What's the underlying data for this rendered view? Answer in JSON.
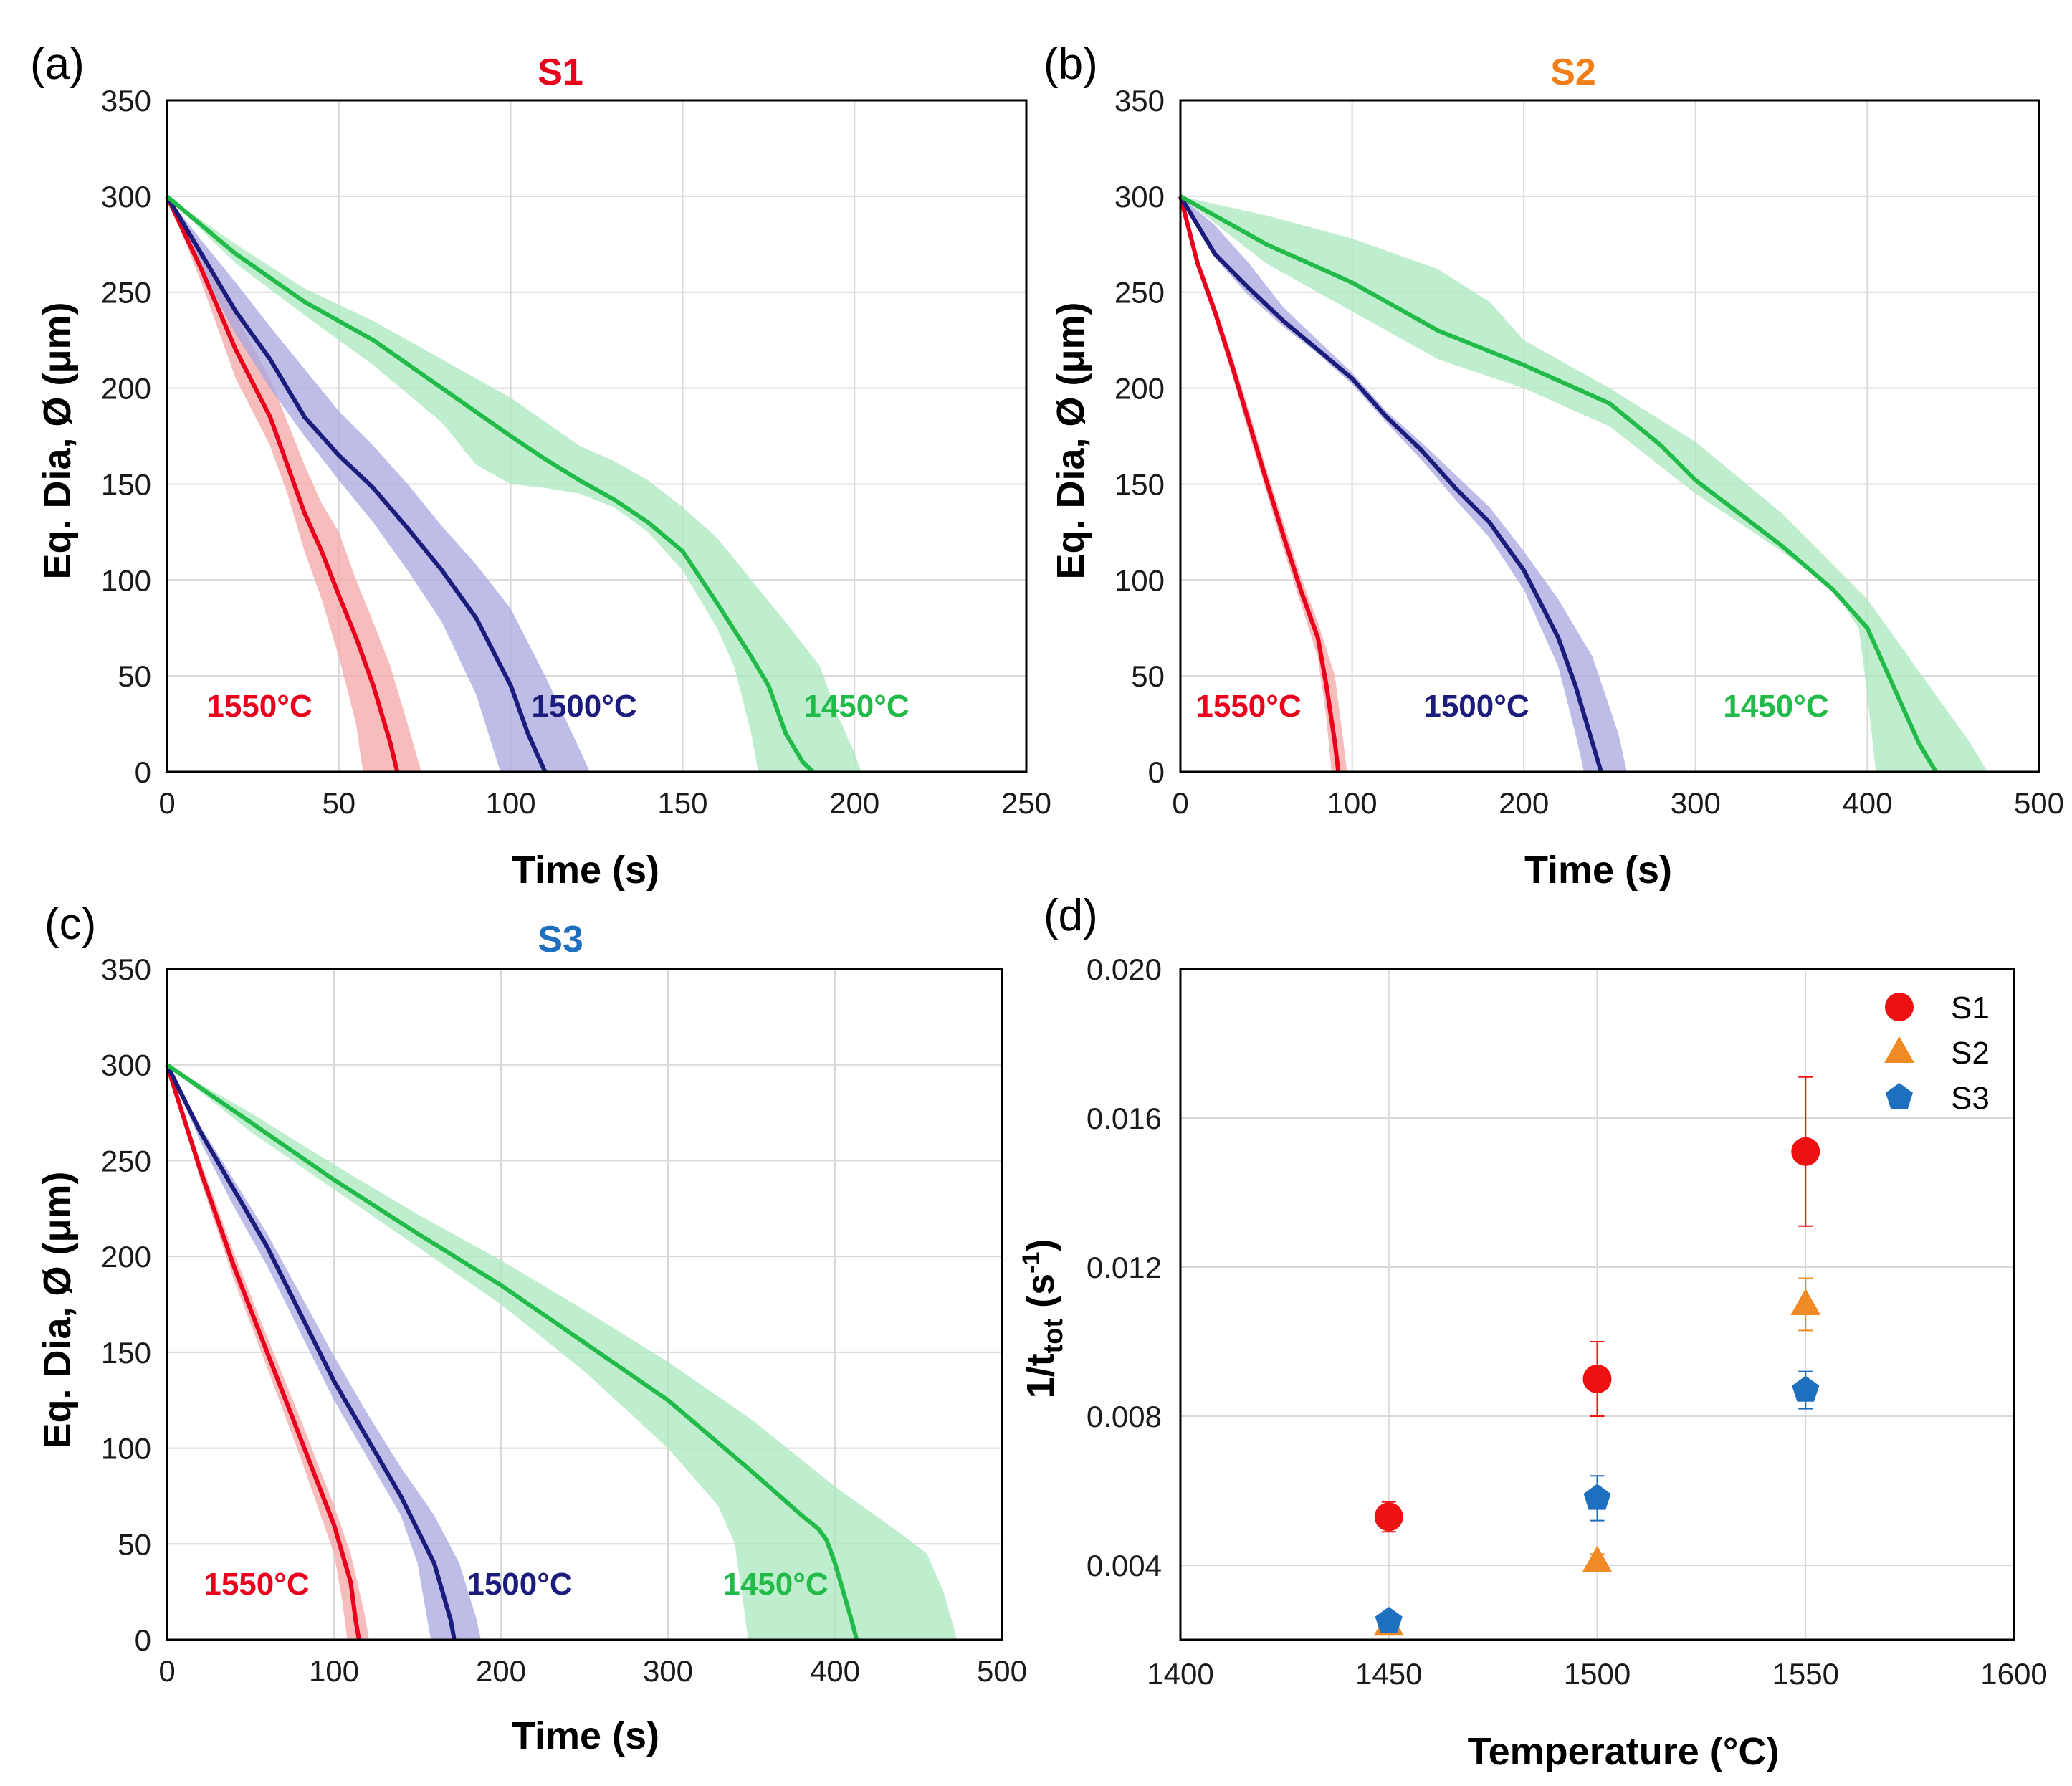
{
  "chart_data": [
    {
      "panel": "(a)",
      "type": "line",
      "title": "S1",
      "title_color": "#e8001c",
      "xlabel": "Time (s)",
      "ylabel": "Eq. Dia, Ø (μm)",
      "xlim": [
        0,
        250
      ],
      "ylim": [
        0,
        350
      ],
      "xticks": [
        "0",
        "50",
        "100",
        "150",
        "200",
        "250"
      ],
      "yticks": [
        "0",
        "50",
        "100",
        "150",
        "200",
        "250",
        "300",
        "350"
      ],
      "grid": true,
      "series": [
        {
          "name": "1550°C",
          "color": "#e8001c",
          "band_color": "#f4a6a6",
          "x": [
            0,
            10,
            20,
            30,
            35,
            40,
            45,
            50,
            55,
            60,
            65,
            67
          ],
          "y": [
            300,
            262,
            220,
            185,
            160,
            135,
            115,
            92,
            70,
            45,
            15,
            0
          ],
          "lower_x": [
            0,
            10,
            20,
            30,
            35,
            40,
            45,
            50,
            55,
            57
          ],
          "lower_y": [
            300,
            255,
            205,
            170,
            145,
            115,
            90,
            60,
            25,
            0
          ],
          "upper_x": [
            0,
            10,
            20,
            30,
            40,
            45,
            50,
            55,
            60,
            65,
            70,
            74
          ],
          "upper_y": [
            300,
            270,
            238,
            205,
            160,
            140,
            125,
            100,
            78,
            55,
            25,
            0
          ]
        },
        {
          "name": "1500°C",
          "color": "#1c1c7c",
          "band_color": "#a7a7e0",
          "x": [
            0,
            10,
            20,
            30,
            40,
            50,
            60,
            70,
            80,
            90,
            100,
            105,
            110
          ],
          "y": [
            300,
            270,
            240,
            215,
            185,
            165,
            148,
            127,
            105,
            80,
            45,
            20,
            0
          ],
          "lower_x": [
            0,
            10,
            20,
            30,
            40,
            50,
            60,
            70,
            80,
            90,
            97
          ],
          "lower_y": [
            300,
            262,
            228,
            200,
            175,
            152,
            130,
            105,
            78,
            40,
            0
          ],
          "upper_x": [
            0,
            10,
            20,
            30,
            40,
            50,
            60,
            70,
            80,
            90,
            100,
            110,
            120,
            123
          ],
          "upper_y": [
            300,
            277,
            255,
            232,
            210,
            188,
            170,
            150,
            128,
            108,
            85,
            50,
            12,
            0
          ]
        },
        {
          "name": "1450°C",
          "color": "#22bb4a",
          "band_color": "#a9e8bd",
          "x": [
            0,
            20,
            40,
            60,
            80,
            100,
            110,
            120,
            130,
            140,
            150,
            160,
            170,
            175,
            180,
            185,
            188
          ],
          "y": [
            300,
            270,
            245,
            225,
            200,
            175,
            163,
            152,
            142,
            130,
            115,
            88,
            60,
            45,
            20,
            5,
            0
          ],
          "lower_x": [
            0,
            20,
            40,
            60,
            80,
            90,
            100,
            110,
            120,
            130,
            140,
            150,
            160,
            165,
            170,
            172
          ],
          "lower_y": [
            300,
            265,
            238,
            212,
            182,
            160,
            150,
            148,
            145,
            138,
            125,
            105,
            75,
            55,
            20,
            0
          ],
          "upper_x": [
            0,
            20,
            40,
            60,
            80,
            100,
            120,
            130,
            140,
            150,
            160,
            170,
            180,
            190,
            195,
            200,
            202
          ],
          "upper_y": [
            300,
            275,
            252,
            235,
            215,
            195,
            170,
            162,
            152,
            138,
            122,
            100,
            78,
            55,
            30,
            10,
            0
          ]
        }
      ]
    },
    {
      "panel": "(b)",
      "type": "line",
      "title": "S2",
      "title_color": "#f07f1a",
      "xlabel": "Time (s)",
      "ylabel": "Eq. Dia, Ø (μm)",
      "xlim": [
        0,
        500
      ],
      "ylim": [
        0,
        350
      ],
      "xticks": [
        "0",
        "100",
        "200",
        "300",
        "400",
        "500"
      ],
      "yticks": [
        "0",
        "50",
        "100",
        "150",
        "200",
        "250",
        "300",
        "350"
      ],
      "grid": true,
      "series": [
        {
          "name": "1550°C",
          "color": "#e8001c",
          "band_color": "#f4a6a6",
          "x": [
            0,
            10,
            20,
            30,
            40,
            50,
            60,
            70,
            80,
            85,
            90,
            92
          ],
          "y": [
            300,
            265,
            240,
            212,
            182,
            152,
            123,
            95,
            70,
            45,
            15,
            0
          ],
          "lower_x": [
            0,
            10,
            20,
            30,
            40,
            50,
            60,
            70,
            80,
            85,
            88
          ],
          "lower_y": [
            300,
            262,
            236,
            207,
            176,
            146,
            116,
            88,
            60,
            28,
            0
          ],
          "upper_x": [
            0,
            10,
            20,
            30,
            40,
            50,
            60,
            70,
            80,
            90,
            95,
            97
          ],
          "upper_y": [
            300,
            268,
            244,
            217,
            188,
            158,
            130,
            102,
            78,
            50,
            15,
            0
          ]
        },
        {
          "name": "1500°C",
          "color": "#1c1c7c",
          "band_color": "#a7a7e0",
          "x": [
            0,
            20,
            40,
            60,
            80,
            100,
            120,
            140,
            160,
            180,
            200,
            220,
            230,
            240,
            245
          ],
          "y": [
            300,
            270,
            252,
            235,
            220,
            205,
            185,
            168,
            148,
            130,
            105,
            70,
            45,
            15,
            0
          ],
          "lower_x": [
            0,
            20,
            40,
            60,
            80,
            100,
            120,
            140,
            160,
            180,
            200,
            220,
            230,
            235
          ],
          "lower_y": [
            300,
            268,
            248,
            232,
            218,
            202,
            182,
            163,
            142,
            122,
            95,
            55,
            20,
            0
          ],
          "upper_x": [
            0,
            20,
            40,
            60,
            80,
            100,
            120,
            140,
            160,
            180,
            200,
            220,
            240,
            255,
            260
          ],
          "upper_y": [
            300,
            285,
            265,
            242,
            225,
            208,
            188,
            172,
            155,
            138,
            115,
            90,
            60,
            20,
            0
          ]
        },
        {
          "name": "1450°C",
          "color": "#22bb4a",
          "band_color": "#a9e8bd",
          "x": [
            0,
            50,
            100,
            150,
            200,
            250,
            280,
            300,
            350,
            380,
            400,
            410,
            420,
            430,
            440
          ],
          "y": [
            300,
            275,
            255,
            230,
            212,
            192,
            170,
            152,
            118,
            95,
            75,
            55,
            35,
            15,
            0
          ],
          "lower_x": [
            0,
            50,
            100,
            150,
            200,
            250,
            300,
            350,
            380,
            395,
            400,
            405
          ],
          "lower_y": [
            300,
            265,
            240,
            215,
            200,
            180,
            145,
            115,
            95,
            75,
            40,
            0
          ],
          "upper_x": [
            0,
            50,
            100,
            150,
            180,
            200,
            250,
            300,
            350,
            400,
            420,
            440,
            460,
            470
          ],
          "upper_y": [
            300,
            290,
            278,
            262,
            245,
            225,
            200,
            172,
            135,
            90,
            65,
            40,
            15,
            0
          ]
        }
      ]
    },
    {
      "panel": "(c)",
      "type": "line",
      "title": "S3",
      "title_color": "#1f6fbf",
      "xlabel": "Time (s)",
      "ylabel": "Eq. Dia, Ø (μm)",
      "xlim": [
        0,
        500
      ],
      "ylim": [
        0,
        350
      ],
      "xticks": [
        "0",
        "100",
        "200",
        "300",
        "400",
        "500"
      ],
      "yticks": [
        "0",
        "50",
        "100",
        "150",
        "200",
        "250",
        "300",
        "350"
      ],
      "grid": true,
      "series": [
        {
          "name": "1550°C",
          "color": "#e8001c",
          "band_color": "#f4a6a6",
          "x": [
            0,
            20,
            40,
            60,
            80,
            100,
            110,
            113,
            115
          ],
          "y": [
            300,
            245,
            195,
            150,
            105,
            60,
            30,
            10,
            0
          ],
          "lower_x": [
            0,
            20,
            40,
            60,
            80,
            100,
            105,
            108
          ],
          "lower_y": [
            300,
            240,
            188,
            142,
            95,
            45,
            20,
            0
          ],
          "upper_x": [
            0,
            20,
            40,
            60,
            80,
            100,
            110,
            118,
            121
          ],
          "upper_y": [
            300,
            250,
            202,
            158,
            115,
            70,
            45,
            15,
            0
          ]
        },
        {
          "name": "1500°C",
          "color": "#1c1c7c",
          "band_color": "#a7a7e0",
          "x": [
            0,
            20,
            40,
            60,
            80,
            100,
            120,
            140,
            160,
            170,
            172
          ],
          "y": [
            300,
            265,
            235,
            205,
            170,
            135,
            105,
            75,
            40,
            10,
            0
          ],
          "lower_x": [
            0,
            20,
            40,
            60,
            80,
            100,
            120,
            140,
            150,
            155,
            158
          ],
          "lower_y": [
            300,
            260,
            226,
            195,
            160,
            125,
            95,
            65,
            40,
            15,
            0
          ],
          "upper_x": [
            0,
            20,
            40,
            60,
            80,
            100,
            120,
            140,
            160,
            175,
            185,
            188
          ],
          "upper_y": [
            300,
            268,
            240,
            212,
            180,
            148,
            118,
            90,
            65,
            40,
            12,
            0
          ]
        },
        {
          "name": "1450°C",
          "color": "#22bb4a",
          "band_color": "#a9e8bd",
          "x": [
            0,
            50,
            100,
            150,
            200,
            250,
            300,
            350,
            380,
            390,
            395,
            400,
            405,
            410,
            413
          ],
          "y": [
            300,
            270,
            240,
            212,
            185,
            155,
            125,
            88,
            65,
            58,
            52,
            40,
            25,
            10,
            0
          ],
          "lower_x": [
            0,
            50,
            100,
            150,
            200,
            250,
            300,
            330,
            340,
            345,
            348
          ],
          "lower_y": [
            300,
            265,
            235,
            205,
            175,
            140,
            100,
            70,
            50,
            20,
            0
          ],
          "upper_x": [
            0,
            50,
            100,
            150,
            200,
            250,
            300,
            350,
            400,
            440,
            455,
            465,
            470,
            473
          ],
          "upper_y": [
            300,
            275,
            248,
            222,
            198,
            172,
            145,
            115,
            80,
            55,
            45,
            25,
            10,
            0
          ]
        }
      ]
    },
    {
      "panel": "(d)",
      "type": "scatter",
      "title": "",
      "xlabel": "Temperature (°C)",
      "ylabel_main": "1/t",
      "ylabel_sub": "tot",
      "ylabel_unit_open": " (s",
      "ylabel_sup": "-1",
      "ylabel_unit_close": ")",
      "xlim": [
        1400,
        1600
      ],
      "ylim": [
        0.002,
        0.02
      ],
      "xticks": [
        "1400",
        "1450",
        "1500",
        "1550",
        "1600"
      ],
      "yticks": [
        "0.004",
        "0.008",
        "0.012",
        "0.016",
        "0.020"
      ],
      "grid": true,
      "legend_position": "top-right",
      "series": [
        {
          "name": "S1",
          "marker": "circle",
          "color": "#ee1111",
          "x": [
            1450,
            1500,
            1550
          ],
          "y": [
            0.0053,
            0.009,
            0.0151
          ],
          "err": [
            0.0004,
            0.001,
            0.002
          ]
        },
        {
          "name": "S2",
          "marker": "triangle",
          "color": "#f08a24",
          "x": [
            1450,
            1500,
            1550
          ],
          "y": [
            0.0024,
            0.0041,
            0.011
          ],
          "err": [
            0.0002,
            0.0002,
            0.0007
          ]
        },
        {
          "name": "S3",
          "marker": "pentagon",
          "color": "#1f6fbf",
          "x": [
            1450,
            1500,
            1550
          ],
          "y": [
            0.0025,
            0.0058,
            0.0087
          ],
          "err": [
            0.0002,
            0.0006,
            0.0005
          ]
        }
      ]
    }
  ]
}
